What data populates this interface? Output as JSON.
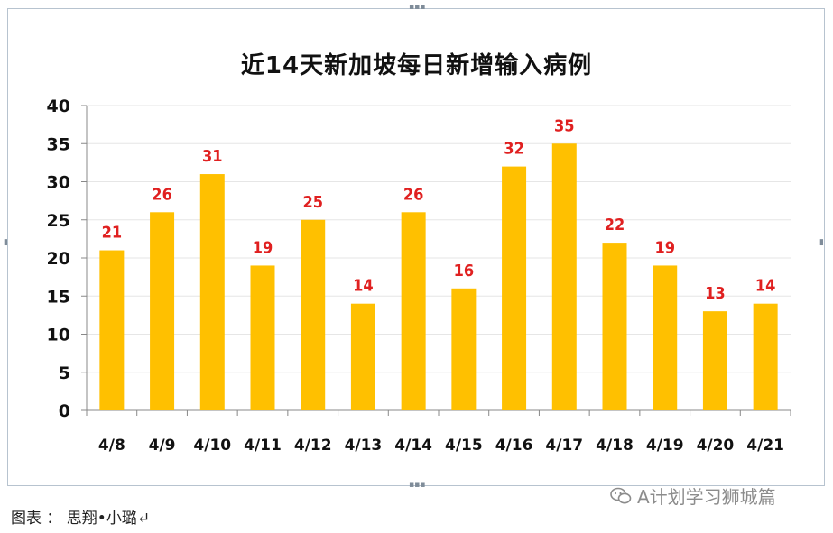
{
  "colors": {
    "bar": "#FFC000",
    "data_label": "#E02020",
    "axis": "#888888",
    "grid": "#e6e6e6"
  },
  "chart_data": {
    "type": "bar",
    "title": "近14天新加坡每日新增输入病例",
    "xlabel": "",
    "ylabel": "",
    "categories": [
      "4/8",
      "4/9",
      "4/10",
      "4/11",
      "4/12",
      "4/13",
      "4/14",
      "4/15",
      "4/16",
      "4/17",
      "4/18",
      "4/19",
      "4/20",
      "4/21"
    ],
    "values": [
      21,
      26,
      31,
      19,
      25,
      14,
      26,
      16,
      32,
      35,
      22,
      19,
      13,
      14
    ],
    "ylim": [
      0,
      40
    ],
    "yticks": [
      0,
      5,
      10,
      15,
      20,
      25,
      30,
      35,
      40
    ],
    "grid": true,
    "data_labels": true
  },
  "caption": "图表 ： 思翔•小璐↵",
  "watermark": {
    "icon": "wechat-icon",
    "text": "A计划学习狮城篇"
  }
}
